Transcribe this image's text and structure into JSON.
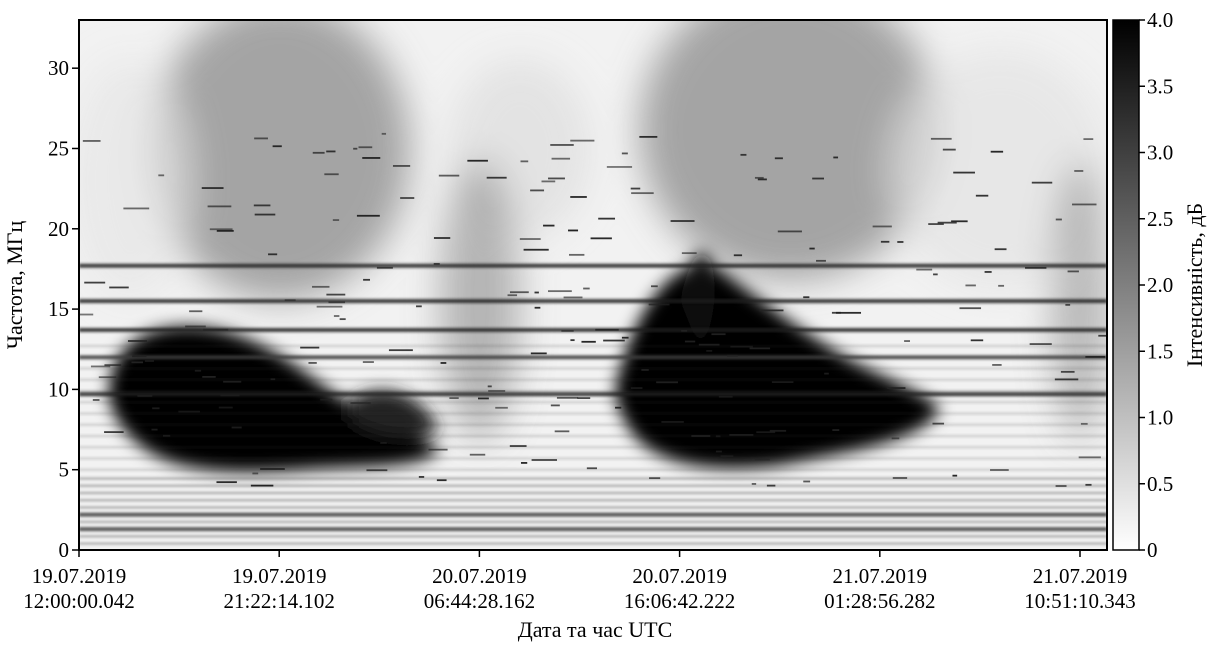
{
  "chart_data": {
    "type": "heatmap",
    "title": "",
    "xlabel": "Дата та час UTC",
    "ylabel": "Частота, МГц",
    "colorbar_label": "Інтенсивність, дБ",
    "colormap": "gray_r",
    "ylim": [
      0,
      33
    ],
    "clim": [
      0,
      4.0
    ],
    "x_ticks": [
      {
        "date": "19.07.2019",
        "time": "12:00:00.042"
      },
      {
        "date": "19.07.2019",
        "time": "21:22:14.102"
      },
      {
        "date": "20.07.2019",
        "time": "06:44:28.162"
      },
      {
        "date": "20.07.2019",
        "time": "16:06:42.222"
      },
      {
        "date": "21.07.2019",
        "time": "01:28:56.282"
      },
      {
        "date": "21.07.2019",
        "time": "10:51:10.343"
      }
    ],
    "y_ticks": [
      0,
      5,
      10,
      15,
      20,
      25,
      30
    ],
    "colorbar_ticks": [
      "4.0",
      "3.5",
      "3.0",
      "2.5",
      "2.0",
      "1.5",
      "1.0",
      "0.5",
      "0"
    ],
    "features": [
      {
        "kind": "intense-emission",
        "time_start": "19.07.2019 13:00",
        "time_end": "20.07.2019 06:00",
        "freq_range": [
          5,
          13
        ],
        "intensity_db": 4.0
      },
      {
        "kind": "intense-emission",
        "time_start": "20.07.2019 14:00",
        "time_end": "21.07.2019 02:00",
        "freq_range": [
          5,
          17
        ],
        "intensity_db": 4.0
      },
      {
        "kind": "horizontal-band",
        "freq": 17.7,
        "intensity_db": 3.5
      },
      {
        "kind": "horizontal-band",
        "freq": 15.5,
        "intensity_db": 3.5
      },
      {
        "kind": "horizontal-band",
        "freq": 13.7,
        "intensity_db": 3.5
      },
      {
        "kind": "horizontal-band",
        "freq": 12.0,
        "intensity_db": 3.0
      },
      {
        "kind": "horizontal-band",
        "freq": 9.7,
        "intensity_db": 3.5
      },
      {
        "kind": "horizontal-band",
        "freq": 2.2,
        "intensity_db": 3.0
      },
      {
        "kind": "horizontal-band",
        "freq": 1.3,
        "intensity_db": 3.0
      }
    ]
  }
}
